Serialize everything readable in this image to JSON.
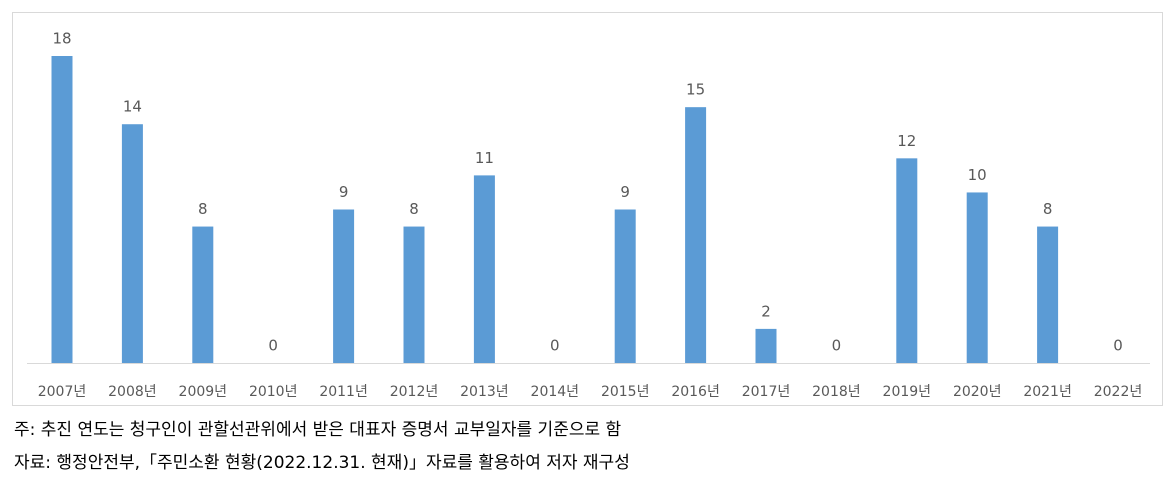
{
  "chart_data": {
    "type": "bar",
    "categories": [
      "2007년",
      "2008년",
      "2009년",
      "2010년",
      "2011년",
      "2012년",
      "2013년",
      "2014년",
      "2015년",
      "2016년",
      "2017년",
      "2018년",
      "2019년",
      "2020년",
      "2021년",
      "2022년"
    ],
    "values": [
      18,
      14,
      8,
      0,
      9,
      8,
      11,
      0,
      9,
      15,
      2,
      0,
      12,
      10,
      8,
      0
    ],
    "color": "#5b9bd5",
    "notes": [
      "주: 추진 연도는 청구인이 관할선관위에서 받은 대표자 증명서 교부일자를 기준으로 함",
      "자료: 행정안전부,「주민소환 현황(2022.12.31. 현재)」자료를 활용하여 저자 재구성"
    ]
  }
}
